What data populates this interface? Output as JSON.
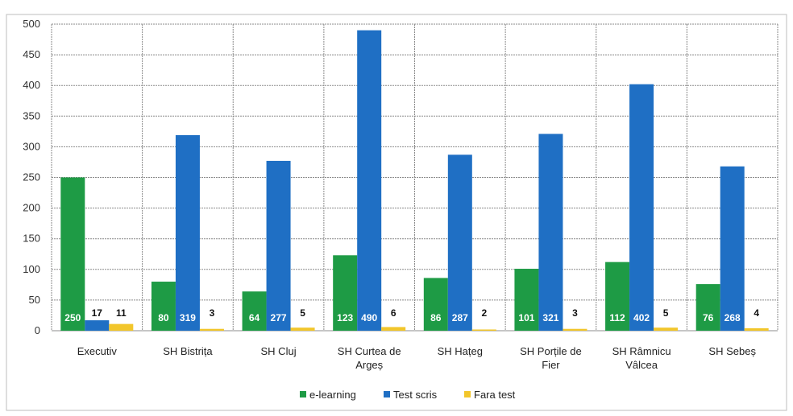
{
  "chart_data": {
    "type": "bar",
    "title": "",
    "xlabel": "",
    "ylabel": "",
    "ylim": [
      0,
      500
    ],
    "yticks": [
      0,
      50,
      100,
      150,
      200,
      250,
      300,
      350,
      400,
      450,
      500
    ],
    "grid": true,
    "legend_position": "bottom",
    "categories": [
      [
        "Executiv"
      ],
      [
        "SH Bistrița"
      ],
      [
        "SH Cluj"
      ],
      [
        "SH Curtea de",
        "Argeș"
      ],
      [
        "SH Hațeg"
      ],
      [
        "SH Porțile de",
        "Fier"
      ],
      [
        "SH Râmnicu",
        "Vâlcea"
      ],
      [
        "SH Sebeș"
      ]
    ],
    "series": [
      {
        "name": "e-learning",
        "color": "#1e9b45",
        "values": [
          250,
          80,
          64,
          123,
          86,
          101,
          112,
          76
        ]
      },
      {
        "name": "Test scris",
        "color": "#1f6fc4",
        "values": [
          17,
          319,
          277,
          490,
          287,
          321,
          402,
          268
        ]
      },
      {
        "name": "Fara test",
        "color": "#f2c62b",
        "values": [
          11,
          3,
          5,
          6,
          2,
          3,
          5,
          4
        ]
      }
    ]
  }
}
